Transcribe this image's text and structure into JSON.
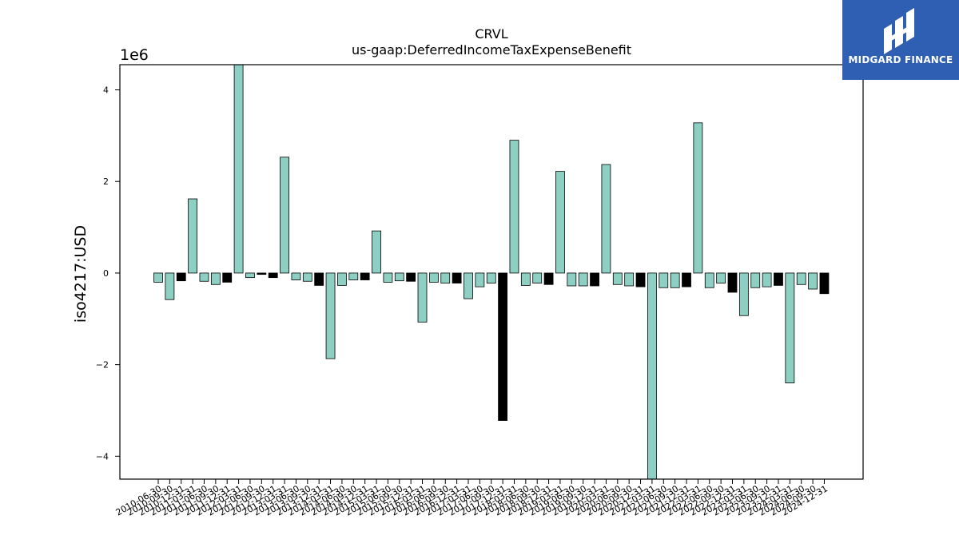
{
  "brand": {
    "name": "MIDGARD FINANCE",
    "bg_color": "#2f5fb3"
  },
  "chart_data": {
    "type": "bar",
    "title": "CRVL",
    "subtitle": "us-gaap:DeferredIncomeTaxExpenseBenefit",
    "ylabel": "iso4217:USD",
    "xlabel": "",
    "y_scale_label": "1e6",
    "ylim": [
      -4.5,
      4.55
    ],
    "yticks": [
      -4,
      -2,
      0,
      2,
      4
    ],
    "ytick_labels": [
      "−4",
      "−2",
      "0",
      "2",
      "4"
    ],
    "grid": false,
    "legend": "none",
    "colors": {
      "positive_period": "#8ecfc4",
      "annual": "#000000"
    },
    "categories": [
      "2010-06-30",
      "2010-09-30",
      "2010-12-31",
      "2011-03-31",
      "2011-06-30",
      "2011-09-30",
      "2011-12-31",
      "2012-03-31",
      "2012-06-30",
      "2012-09-30",
      "2012-12-31",
      "2013-03-31",
      "2013-06-30",
      "2013-09-30",
      "2013-12-31",
      "2014-03-31",
      "2014-06-30",
      "2014-09-30",
      "2014-12-31",
      "2015-03-31",
      "2015-06-30",
      "2015-09-30",
      "2015-12-31",
      "2016-03-31",
      "2016-06-30",
      "2016-09-30",
      "2016-12-31",
      "2017-03-31",
      "2017-06-30",
      "2017-09-30",
      "2017-12-31",
      "2018-03-31",
      "2018-06-30",
      "2018-09-30",
      "2018-12-31",
      "2019-03-31",
      "2019-06-30",
      "2019-09-30",
      "2019-12-31",
      "2020-03-31",
      "2020-06-30",
      "2020-09-30",
      "2020-12-31",
      "2021-03-31",
      "2021-06-30",
      "2021-09-30",
      "2021-12-31",
      "2022-03-31",
      "2022-06-30",
      "2022-09-30",
      "2022-12-31",
      "2023-03-31",
      "2023-06-30",
      "2023-09-30",
      "2023-12-31",
      "2024-03-31",
      "2024-06-30",
      "2024-09-30",
      "2024-12-31"
    ],
    "values": [
      -0.2,
      -0.58,
      -0.17,
      1.62,
      -0.18,
      -0.25,
      -0.2,
      4.6,
      -0.1,
      -0.03,
      -0.1,
      2.53,
      -0.15,
      -0.18,
      -0.27,
      -1.87,
      -0.27,
      -0.15,
      -0.15,
      0.92,
      -0.2,
      -0.17,
      -0.18,
      -1.07,
      -0.2,
      -0.22,
      -0.22,
      -0.56,
      -0.3,
      -0.22,
      -3.22,
      2.9,
      -0.27,
      -0.22,
      -0.25,
      2.22,
      -0.28,
      -0.28,
      -0.28,
      2.37,
      -0.25,
      -0.28,
      -0.3,
      -4.5,
      -0.32,
      -0.32,
      -0.3,
      3.28,
      -0.32,
      -0.22,
      -0.42,
      -0.93,
      -0.32,
      -0.3,
      -0.27,
      -2.4,
      -0.25,
      -0.35,
      -0.45
    ],
    "annual_flags": [
      0,
      0,
      1,
      0,
      0,
      0,
      1,
      0,
      0,
      1,
      1,
      0,
      0,
      0,
      1,
      0,
      0,
      0,
      1,
      0,
      0,
      0,
      1,
      0,
      0,
      0,
      1,
      0,
      0,
      0,
      1,
      0,
      0,
      0,
      1,
      0,
      0,
      0,
      1,
      0,
      0,
      0,
      1,
      0,
      0,
      0,
      1,
      0,
      0,
      0,
      1,
      0,
      0,
      0,
      1,
      0,
      0,
      0,
      1
    ]
  }
}
